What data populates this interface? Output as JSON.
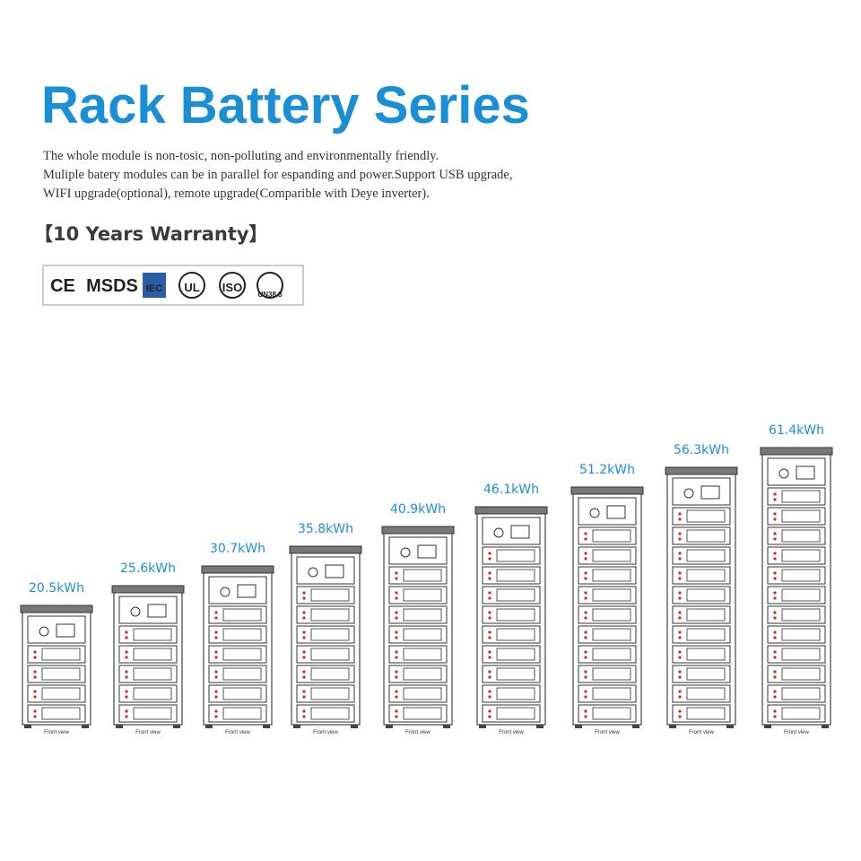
{
  "title": "Rack Battery Series",
  "description": [
    "The whole module is non-tosic, non-polluting and environmentally friendly.",
    "Muliple batery modules can be in parallel for espanding and power.Support USB upgrade,",
    "WIFI upgrade(optional), remote upgrade(Comparible with Deye inverter)."
  ],
  "warranty": "【10 Years Warranty】",
  "certifications": [
    "CE",
    "MSDS",
    "IEC",
    "UL",
    "ISO",
    "UN38.3"
  ],
  "racks": [
    {
      "capacity": "20.5kWh",
      "view": "Front view"
    },
    {
      "capacity": "25.6kWh",
      "view": "Front view"
    },
    {
      "capacity": "30.7kWh",
      "view": "Front view"
    },
    {
      "capacity": "35.8kWh",
      "view": "Front view"
    },
    {
      "capacity": "40.9kWh",
      "view": "Front view"
    },
    {
      "capacity": "46.1kWh",
      "view": "Front view"
    },
    {
      "capacity": "51.2kWh",
      "view": "Front view"
    },
    {
      "capacity": "56.3kWh",
      "view": "Front view"
    },
    {
      "capacity": "61.4kWh",
      "view": "Front view"
    }
  ]
}
